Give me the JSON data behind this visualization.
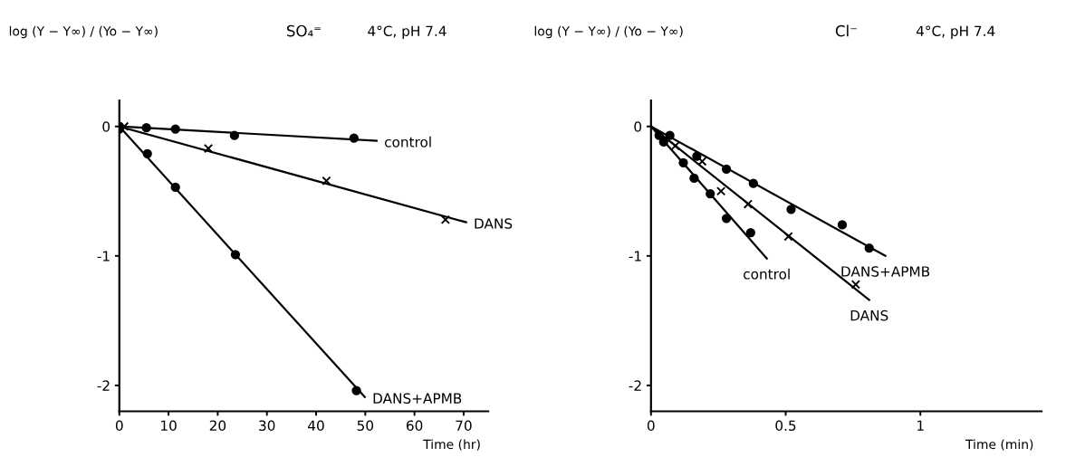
{
  "chart_data": [
    {
      "type": "scatter",
      "title": "SO₄⁼",
      "subtitle": "4°C, pH 7.4",
      "ylabel": "log (Y − Y∞) / (Yo − Y∞)",
      "xlabel": "Time (hr)",
      "xlim": [
        0,
        75
      ],
      "ylim": [
        -2.2,
        0.2
      ],
      "xticks": [
        0,
        10,
        20,
        30,
        40,
        50,
        60,
        70
      ],
      "yticks": [
        -2,
        -1,
        0
      ],
      "grid": false,
      "legend": false,
      "series": [
        {
          "color": "#000000",
          "marker": "circle",
          "x": [
            0,
            5.5,
            11.4,
            23.4,
            47.7
          ],
          "values": [
            0,
            -0.01,
            -0.02,
            -0.07,
            -0.09
          ]
        },
        {
          "color": "#000000",
          "marker": "cross",
          "x": [
            1,
            18.1,
            42.1,
            66.3
          ],
          "values": [
            0,
            -0.17,
            -0.42,
            -0.72
          ]
        },
        {
          "color": "#000000",
          "marker": "circle",
          "x": [
            0,
            5.7,
            11.4,
            23.6,
            48.2
          ],
          "values": [
            -0.02,
            -0.21,
            -0.47,
            -0.99,
            -2.04
          ]
        },
        {
          "type": "line",
          "name": "control",
          "color": "#000000",
          "marker": "none",
          "x": [
            0,
            52.3
          ],
          "values": [
            0,
            -0.11
          ]
        },
        {
          "type": "line",
          "name": "DANS",
          "color": "#000000",
          "marker": "none",
          "x": [
            0,
            70.5
          ],
          "values": [
            0,
            -0.74
          ]
        },
        {
          "type": "line",
          "name": "DANS+APMB",
          "color": "#000000",
          "marker": "none",
          "x": [
            0,
            49.9
          ],
          "values": [
            0,
            -2.09
          ]
        }
      ]
    },
    {
      "type": "scatter",
      "title": "Cl⁻",
      "subtitle": "4°C, pH 7.4",
      "ylabel": "log (Y − Y∞) / (Yo − Y∞)",
      "xlabel": "Time (min)",
      "xlim": [
        0,
        1.45
      ],
      "ylim": [
        -2.2,
        0.2
      ],
      "xticks": [
        0,
        0.5,
        1
      ],
      "yticks": [
        -2,
        -1,
        0
      ],
      "grid": false,
      "legend": false,
      "series": [
        {
          "color": "#000000",
          "marker": "circle",
          "x": [
            0.03,
            0.047,
            0.12,
            0.16,
            0.22,
            0.28,
            0.37
          ],
          "values": [
            -0.07,
            -0.12,
            -0.28,
            -0.4,
            -0.52,
            -0.71,
            -0.82
          ]
        },
        {
          "color": "#000000",
          "marker": "cross",
          "x": [
            0.09,
            0.19,
            0.26,
            0.36,
            0.51,
            0.76
          ],
          "values": [
            -0.15,
            -0.27,
            -0.5,
            -0.6,
            -0.85,
            -1.22
          ]
        },
        {
          "color": "#000000",
          "marker": "circle",
          "x": [
            0.07,
            0.17,
            0.28,
            0.38,
            0.52,
            0.71,
            0.81
          ],
          "values": [
            -0.07,
            -0.23,
            -0.33,
            -0.44,
            -0.64,
            -0.76,
            -0.94
          ]
        },
        {
          "type": "line",
          "name": "control",
          "color": "#000000",
          "marker": "none",
          "x": [
            0,
            0.43
          ],
          "values": [
            0,
            -1.02
          ]
        },
        {
          "type": "line",
          "name": "DANS",
          "color": "#000000",
          "marker": "none",
          "x": [
            0,
            0.81
          ],
          "values": [
            0,
            -1.34
          ]
        },
        {
          "type": "line",
          "name": "DANS+APMB",
          "color": "#000000",
          "marker": "none",
          "x": [
            0,
            0.87
          ],
          "values": [
            0,
            -1.0
          ]
        }
      ]
    }
  ]
}
